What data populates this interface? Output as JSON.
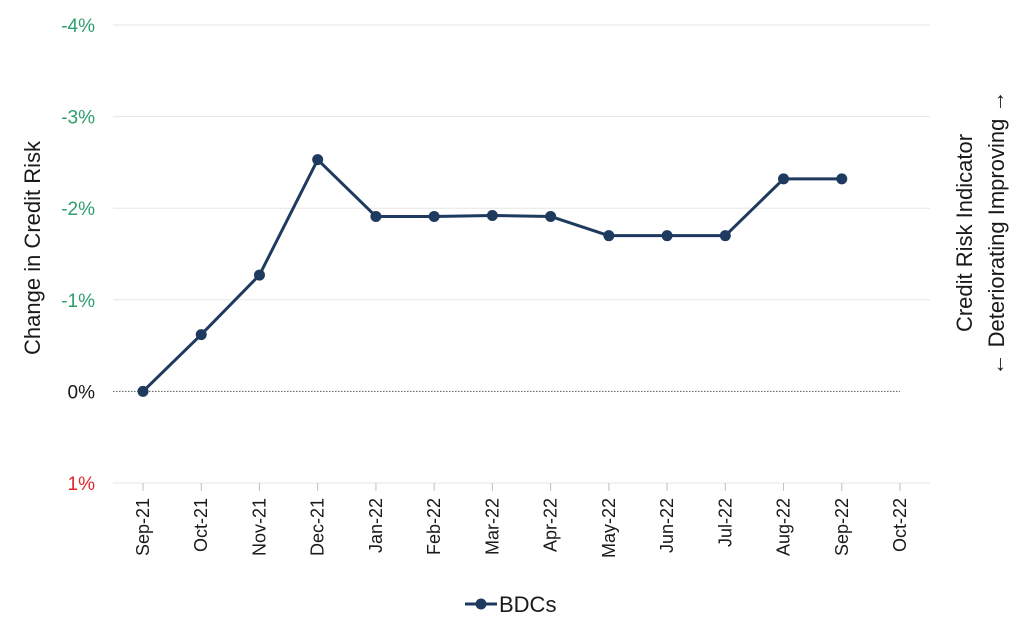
{
  "chart_data": {
    "type": "line",
    "ylabel": "Change in Credit Risk",
    "right_label_line1": "Credit Risk Indicator",
    "right_label_line2": "← Deteriorating Improving →",
    "y_axis_reversed": true,
    "ylim": [
      1,
      -4
    ],
    "y_ticks": [
      {
        "value": -4,
        "label": "-4%",
        "color": "#2e9e6b"
      },
      {
        "value": -3,
        "label": "-3%",
        "color": "#2e9e6b"
      },
      {
        "value": -2,
        "label": "-2%",
        "color": "#2e9e6b"
      },
      {
        "value": -1,
        "label": "-1%",
        "color": "#2e9e6b"
      },
      {
        "value": 0,
        "label": "0%",
        "color": "#1a1a1a"
      },
      {
        "value": 1,
        "label": "1%",
        "color": "#e0262b"
      }
    ],
    "categories": [
      "Sep-21",
      "Oct-21",
      "Nov-21",
      "Dec-21",
      "Jan-22",
      "Feb-22",
      "Mar-22",
      "Apr-22",
      "May-22",
      "Jun-22",
      "Jul-22",
      "Aug-22",
      "Sep-22",
      "Oct-22"
    ],
    "series": [
      {
        "name": "BDCs",
        "color": "#1f3a5f",
        "values": [
          0.0,
          -0.62,
          -1.27,
          -2.53,
          -1.91,
          -1.91,
          -1.92,
          -1.91,
          -1.7,
          -1.7,
          -1.7,
          -2.32,
          -2.32,
          null
        ]
      }
    ],
    "grid": true,
    "legend_position": "bottom"
  }
}
